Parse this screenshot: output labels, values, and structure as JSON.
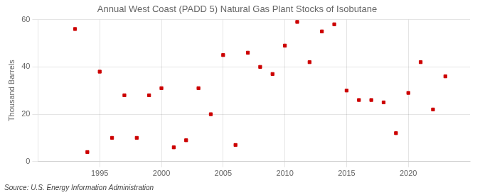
{
  "chart_data": {
    "type": "scatter",
    "title": "Annual West Coast (PADD 5) Natural Gas Plant Stocks of Isobutane",
    "ylabel": "Thousand Barrels",
    "annotation": "Source: U.S. Energy Information Administration",
    "x": [
      1993,
      1994,
      1995,
      1996,
      1997,
      1998,
      1999,
      2000,
      2001,
      2002,
      2003,
      2004,
      2005,
      2006,
      2007,
      2008,
      2009,
      2010,
      2011,
      2012,
      2013,
      2014,
      2015,
      2016,
      2017,
      2018,
      2019,
      2020,
      2021,
      2022,
      2023
    ],
    "values": [
      56,
      4,
      38,
      10,
      28,
      10,
      28,
      31,
      6,
      9,
      31,
      20,
      45,
      7,
      46,
      40,
      37,
      49,
      59,
      42,
      55,
      58,
      30,
      26,
      26,
      25,
      12,
      29,
      42,
      22,
      36
    ],
    "color": "#cc0000",
    "marker": "square",
    "xlim": [
      1990,
      2025
    ],
    "xticks": [
      1995,
      2000,
      2005,
      2010,
      2015,
      2020
    ],
    "ylim": [
      0,
      60
    ],
    "yticks": [
      0,
      20,
      40,
      60
    ],
    "grid": true
  }
}
